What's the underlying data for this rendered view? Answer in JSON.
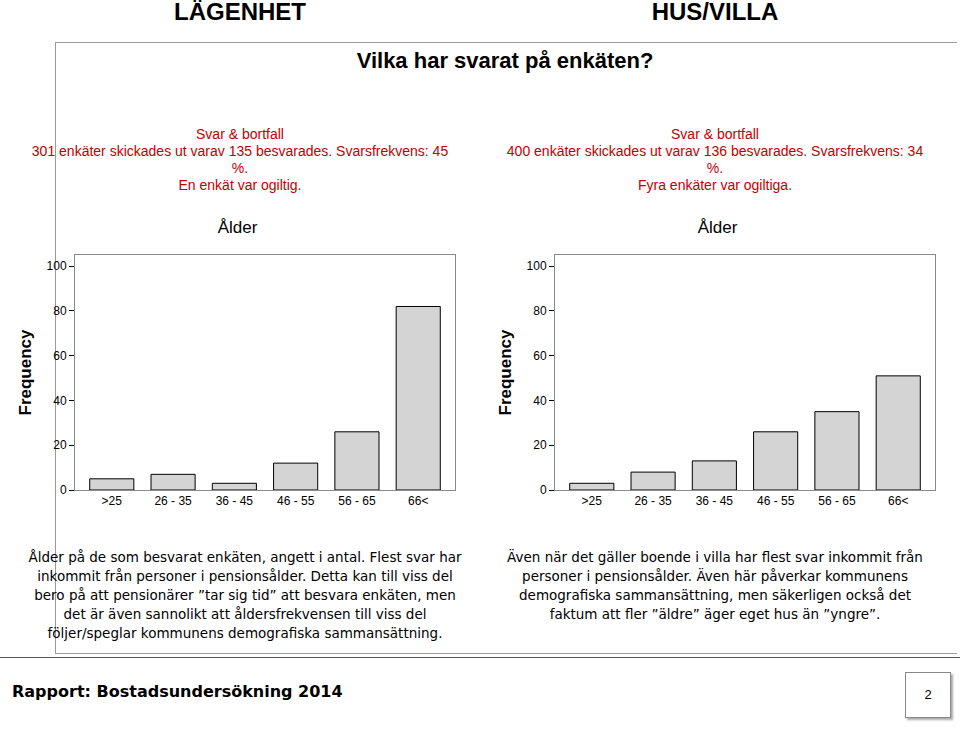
{
  "headings": [
    "LÄGENHET",
    "HUS/VILLA"
  ],
  "title": "Vilka har svarat på enkäten?",
  "columns": [
    {
      "response_heading": "Svar & bortfall",
      "response_lines": [
        "301 enkäter skickades ut varav 135 besvarades. Svarsfrekvens: 45 %.",
        "En enkät var ogiltig."
      ],
      "comment": "Ålder på de som besvarat enkäten, angett i antal. Flest svar har inkommit från personer i pensionsålder. Detta kan till viss del bero på att pensionärer ”tar sig tid” att besvara enkäten, men det är även sannolikt att åldersfrekvensen till viss del följer/speglar kommunens demografiska sammansättning."
    },
    {
      "response_heading": "Svar & bortfall",
      "response_lines": [
        "400 enkäter skickades ut varav 136 besvarades. Svarsfrekvens: 34 %.",
        "Fyra enkäter var ogiltiga."
      ],
      "comment": "Även när det gäller boende i villa har flest svar inkommit från personer i pensionsålder. Även här påverkar kommunens demografiska sammansättning, men säkerligen också det faktum att fler ”äldre” äger eget hus än ”yngre”."
    }
  ],
  "chart_data": [
    {
      "type": "bar",
      "title": "Ålder",
      "y_label": "Frequency",
      "categories": [
        ">25",
        "26 - 35",
        "36 - 45",
        "46 - 55",
        "56 - 65",
        "66<"
      ],
      "values": [
        5,
        7,
        3,
        12,
        26,
        82
      ],
      "color": "#d4d4d4",
      "ylim": [
        0,
        105
      ],
      "yticks": [
        0,
        20,
        40,
        60,
        80,
        100
      ]
    },
    {
      "type": "bar",
      "title": "Ålder",
      "y_label": "Frequency",
      "categories": [
        ">25",
        "26 - 35",
        "36 - 45",
        "46 - 55",
        "56 - 65",
        "66<"
      ],
      "values": [
        3,
        8,
        13,
        26,
        35,
        51
      ],
      "color": "#d4d4d4",
      "ylim": [
        0,
        105
      ],
      "yticks": [
        0,
        20,
        40,
        60,
        80,
        100
      ]
    }
  ],
  "footer": "Rapport: Bostadsundersökning 2014",
  "page_number": 2
}
